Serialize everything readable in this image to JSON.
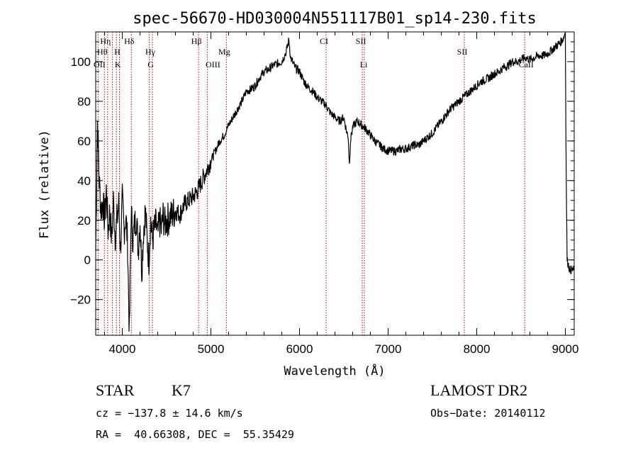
{
  "chart_data": {
    "type": "line",
    "title": "spec-56670-HD030004N551117B01_sp14-230.fits",
    "xlabel": "Wavelength (Å)",
    "ylabel": "Flux (relative)",
    "xlim": [
      3700,
      9100
    ],
    "ylim": [
      -38,
      115
    ],
    "x_ticks": [
      4000,
      5000,
      6000,
      7000,
      8000,
      9000
    ],
    "y_ticks": [
      -20,
      0,
      20,
      40,
      60,
      80,
      100
    ],
    "grid": false,
    "series": [
      {
        "x": [
          3700,
          3720,
          3740,
          3760,
          3780,
          3800,
          3820,
          3840,
          3860,
          3880,
          3900,
          3920,
          3940,
          3960,
          3980,
          4000,
          4020,
          4040,
          4060,
          4080,
          4100,
          4120,
          4140,
          4160,
          4180,
          4200,
          4220,
          4240,
          4260,
          4280,
          4300,
          4320,
          4340,
          4360,
          4380,
          4400,
          4420,
          4440,
          4460,
          4480,
          4500,
          4550,
          4600,
          4650,
          4700,
          4750,
          4800,
          4850,
          4900,
          4950,
          5000,
          5050,
          5100,
          5150,
          5200,
          5250,
          5300,
          5350,
          5400,
          5450,
          5500,
          5550,
          5600,
          5650,
          5700,
          5750,
          5800,
          5850,
          5880,
          5900,
          5920,
          5950,
          6000,
          6050,
          6100,
          6150,
          6200,
          6250,
          6300,
          6350,
          6400,
          6450,
          6500,
          6530,
          6550,
          6563,
          6575,
          6600,
          6650,
          6700,
          6750,
          6800,
          6850,
          6900,
          6950,
          7000,
          7050,
          7100,
          7150,
          7200,
          7250,
          7300,
          7350,
          7400,
          7450,
          7500,
          7550,
          7600,
          7650,
          7700,
          7750,
          7800,
          7850,
          7900,
          7950,
          8000,
          8050,
          8100,
          8150,
          8200,
          8250,
          8300,
          8350,
          8400,
          8450,
          8500,
          8550,
          8600,
          8650,
          8700,
          8750,
          8800,
          8850,
          8900,
          8950,
          8980,
          9000,
          9010,
          9020,
          9050,
          9100
        ],
        "y": [
          5,
          70,
          40,
          25,
          30,
          20,
          35,
          15,
          25,
          10,
          30,
          12,
          20,
          28,
          5,
          30,
          15,
          22,
          8,
          -38,
          25,
          10,
          18,
          22,
          5,
          20,
          -5,
          15,
          25,
          10,
          0,
          20,
          10,
          15,
          18,
          12,
          20,
          15,
          22,
          18,
          20,
          22,
          25,
          23,
          28,
          30,
          32,
          35,
          40,
          45,
          50,
          55,
          60,
          63,
          68,
          72,
          76,
          80,
          85,
          86,
          88,
          92,
          95,
          96,
          98,
          99,
          100,
          105,
          111,
          102,
          100,
          97,
          95,
          90,
          87,
          85,
          82,
          80,
          78,
          74,
          72,
          70,
          72,
          65,
          62,
          48,
          60,
          67,
          70,
          68,
          66,
          63,
          60,
          58,
          56,
          55,
          55,
          55,
          56,
          56,
          57,
          58,
          58,
          60,
          62,
          64,
          67,
          70,
          73,
          76,
          78,
          80,
          82,
          84,
          86,
          88,
          90,
          91,
          92,
          94,
          95,
          97,
          98,
          100,
          100,
          101,
          102,
          101,
          102,
          103,
          103,
          104,
          106,
          108,
          110,
          112,
          115,
          40,
          0,
          -5,
          -5
        ]
      }
    ],
    "annotations_top": [
      {
        "label": "Hη",
        "x": 3835
      },
      {
        "label": "Hθ",
        "x": 3798
      },
      {
        "label": "H",
        "x": 3968
      },
      {
        "label": "Hδ",
        "x": 4102
      },
      {
        "label": "Hγ",
        "x": 4340
      },
      {
        "label": "Hβ",
        "x": 4861
      },
      {
        "label": "Mg",
        "x": 5175
      },
      {
        "label": "CI",
        "x": 6300
      },
      {
        "label": "SII",
        "x": 6717
      },
      {
        "label": "SII",
        "x": 7860
      }
    ],
    "annotations_bottom": [
      {
        "label": "OII",
        "x": 3727
      },
      {
        "label": "K",
        "x": 3934
      },
      {
        "label": "G",
        "x": 4305
      },
      {
        "label": "OIII",
        "x": 5007
      },
      {
        "label": "Li",
        "x": 6708
      },
      {
        "label": "CaII",
        "x": 8542
      }
    ],
    "line_markers": [
      3727,
      3798,
      3835,
      3889,
      3934,
      3968,
      4102,
      4305,
      4340,
      4861,
      4959,
      5175,
      6300,
      6708,
      6731,
      7860,
      8542
    ],
    "colors": {
      "spectrum": "#000000",
      "markers": "#c00000"
    }
  },
  "info": {
    "class_label": "STAR",
    "subclass": "K7",
    "survey": "LAMOST DR2",
    "cz": "cz = −137.8 ± 14.6 km/s",
    "obs_date": "Obs−Date: 20140112",
    "radec": "RA =  40.66308, DEC =  55.35429"
  }
}
